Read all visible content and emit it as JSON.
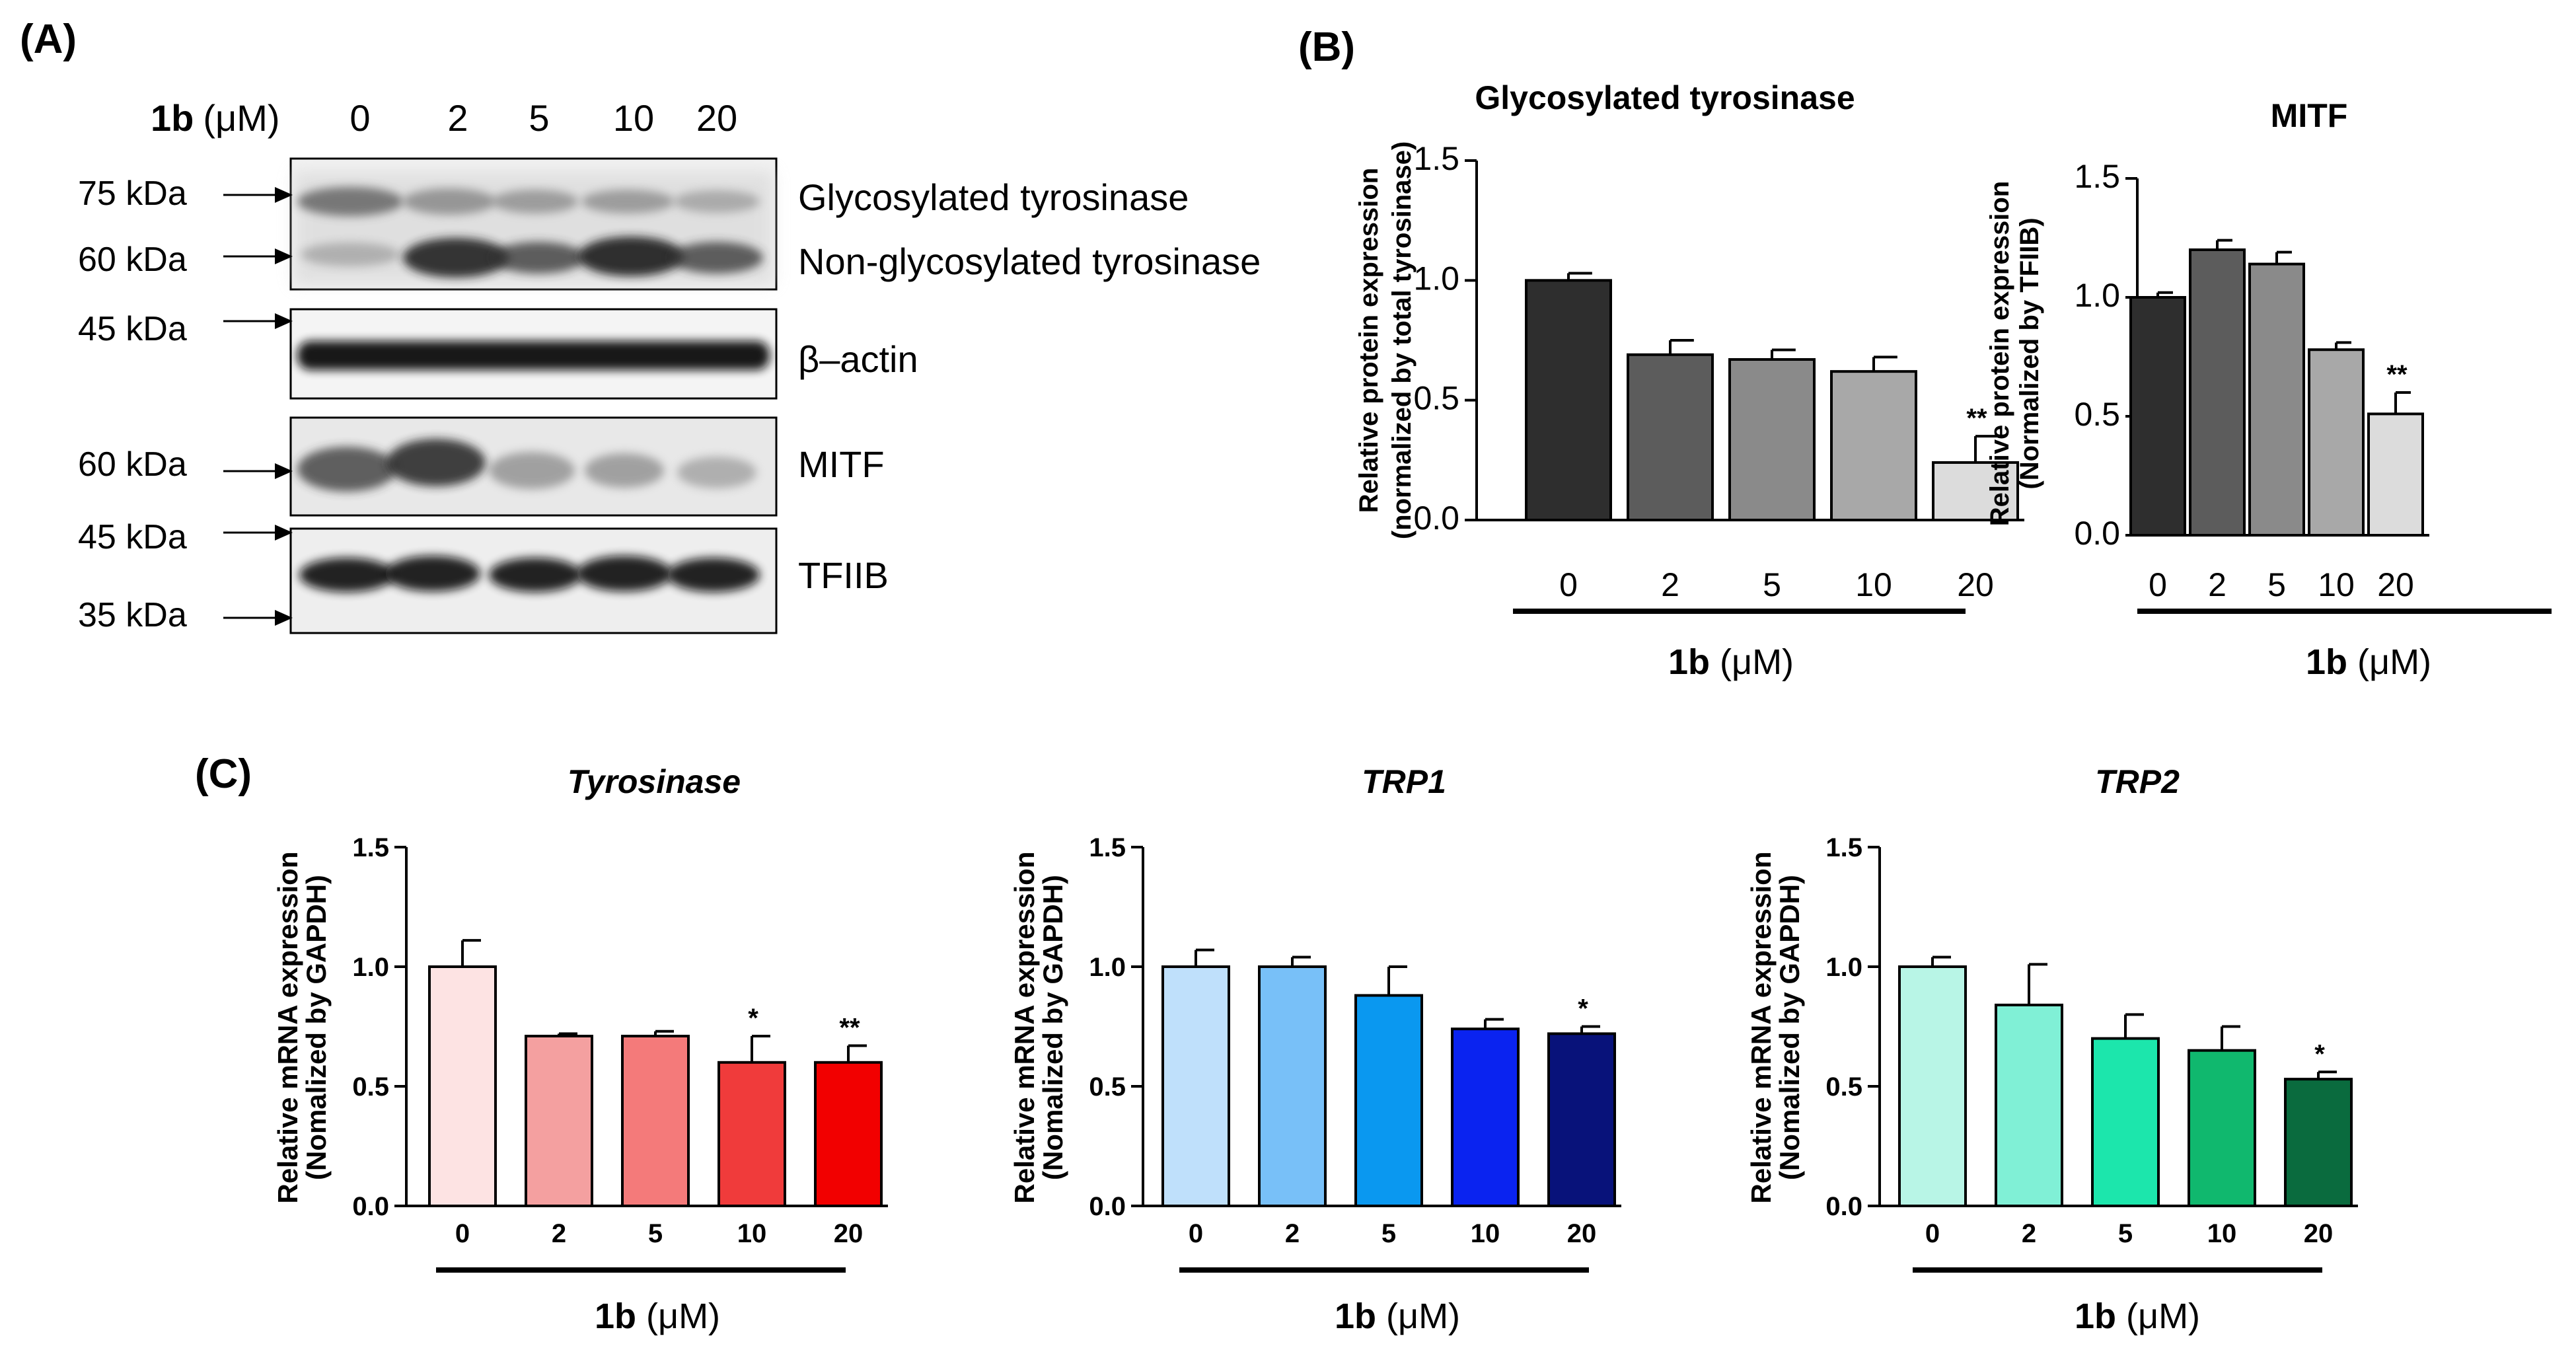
{
  "figure": {
    "panel_labels": {
      "a": "(A)",
      "b": "(B)",
      "c": "(C)"
    }
  },
  "colors": {
    "panel_b": [
      "#2e2e2e",
      "#5c5c5c",
      "#8a8a8a",
      "#a8a8a8",
      "#dcdcdc"
    ],
    "tyrosinase": [
      "#fde3e3",
      "#f4a0a0",
      "#f47a7a",
      "#f03b3b",
      "#f20000"
    ],
    "trp1": [
      "#bfe0fb",
      "#78c0f8",
      "#0a98f0",
      "#0a23f0",
      "#08127a"
    ],
    "trp2": [
      "#b8f5e6",
      "#80f0d6",
      "#1ce6ac",
      "#10b86e",
      "#0a6b3e"
    ]
  },
  "western_blot": {
    "treatment_label": "1b",
    "treatment_unit": "(μM)",
    "doses": [
      "0",
      "2",
      "5",
      "10",
      "20"
    ],
    "band_labels": [
      "Glycosylated tyrosinase",
      "Non-glycosylated tyrosinase",
      "β–actin",
      "MITF",
      "TFIIB"
    ],
    "kda_markers": [
      "75 kDa",
      "60 kDa",
      "45 kDa",
      "60 kDa",
      "45 kDa",
      "35 kDa"
    ]
  },
  "chart_data": [
    {
      "type": "bar",
      "panel": "B",
      "title": "Glycosylated tyrosinase",
      "categories": [
        "0",
        "2",
        "5",
        "10",
        "20"
      ],
      "values": [
        1.0,
        0.69,
        0.67,
        0.62,
        0.24
      ],
      "errors": [
        0.03,
        0.06,
        0.04,
        0.06,
        0.11
      ],
      "significance": [
        "",
        "",
        "",
        "",
        "**"
      ],
      "ylabel": "Relative protein expression",
      "ylabel2": "(normalized by total tyrosinase)",
      "xlabel_bold": "1b",
      "xlabel_rest": " (μM)",
      "ylim": [
        0,
        1.5
      ],
      "yticks": [
        "0.0",
        "0.5",
        "1.0",
        "1.5"
      ],
      "yticks_values": [
        0,
        0.5,
        1.0,
        1.5
      ]
    },
    {
      "type": "bar",
      "panel": "B",
      "title": "MITF",
      "categories": [
        "0",
        "2",
        "5",
        "10",
        "20"
      ],
      "values": [
        1.0,
        1.2,
        1.14,
        0.78,
        0.51
      ],
      "errors": [
        0.02,
        0.04,
        0.05,
        0.03,
        0.09
      ],
      "significance": [
        "",
        "",
        "",
        "",
        "**"
      ],
      "ylabel": "Relative protein expression",
      "ylabel2": "(Normalized by TFIIB)",
      "xlabel_bold": "1b",
      "xlabel_rest": " (μM)",
      "ylim": [
        0,
        1.5
      ],
      "yticks": [
        "0.0",
        "0.5",
        "1.0",
        "1.5"
      ],
      "yticks_values": [
        0,
        0.5,
        1.0,
        1.5
      ]
    },
    {
      "type": "bar",
      "panel": "C",
      "title": "Tyrosinase",
      "categories": [
        "0",
        "2",
        "5",
        "10",
        "20"
      ],
      "values": [
        1.0,
        0.71,
        0.71,
        0.6,
        0.6
      ],
      "errors": [
        0.11,
        0.01,
        0.02,
        0.11,
        0.07
      ],
      "significance": [
        "",
        "",
        "",
        "*",
        "**"
      ],
      "ylabel": "Relative mRNA expression",
      "ylabel2": "(Nomalized by GAPDH)",
      "xlabel_bold": "1b",
      "xlabel_rest": " (μM)",
      "ylim": [
        0,
        1.5
      ],
      "yticks": [
        "0.0",
        "0.5",
        "1.0",
        "1.5"
      ],
      "yticks_values": [
        0,
        0.5,
        1.0,
        1.5
      ]
    },
    {
      "type": "bar",
      "panel": "C",
      "title": "TRP1",
      "categories": [
        "0",
        "2",
        "5",
        "10",
        "20"
      ],
      "values": [
        1.0,
        1.0,
        0.88,
        0.74,
        0.72
      ],
      "errors": [
        0.07,
        0.04,
        0.12,
        0.04,
        0.03
      ],
      "significance": [
        "",
        "",
        "",
        "",
        "*"
      ],
      "ylabel": "Relative mRNA expression",
      "ylabel2": "(Nomalized by GAPDH)",
      "xlabel_bold": "1b",
      "xlabel_rest": " (μM)",
      "ylim": [
        0,
        1.5
      ],
      "yticks": [
        "0.0",
        "0.5",
        "1.0",
        "1.5"
      ],
      "yticks_values": [
        0,
        0.5,
        1.0,
        1.5
      ]
    },
    {
      "type": "bar",
      "panel": "C",
      "title": "TRP2",
      "categories": [
        "0",
        "2",
        "5",
        "10",
        "20"
      ],
      "values": [
        1.0,
        0.84,
        0.7,
        0.65,
        0.53
      ],
      "errors": [
        0.04,
        0.17,
        0.1,
        0.1,
        0.03
      ],
      "significance": [
        "",
        "",
        "",
        "",
        "*"
      ],
      "ylabel": "Relative mRNA expression",
      "ylabel2": "(Nomalized by GAPDH)",
      "xlabel_bold": "1b",
      "xlabel_rest": " (μM)",
      "ylim": [
        0,
        1.5
      ],
      "yticks": [
        "0.0",
        "0.5",
        "1.0",
        "1.5"
      ],
      "yticks_values": [
        0,
        0.5,
        1.0,
        1.5
      ]
    }
  ]
}
